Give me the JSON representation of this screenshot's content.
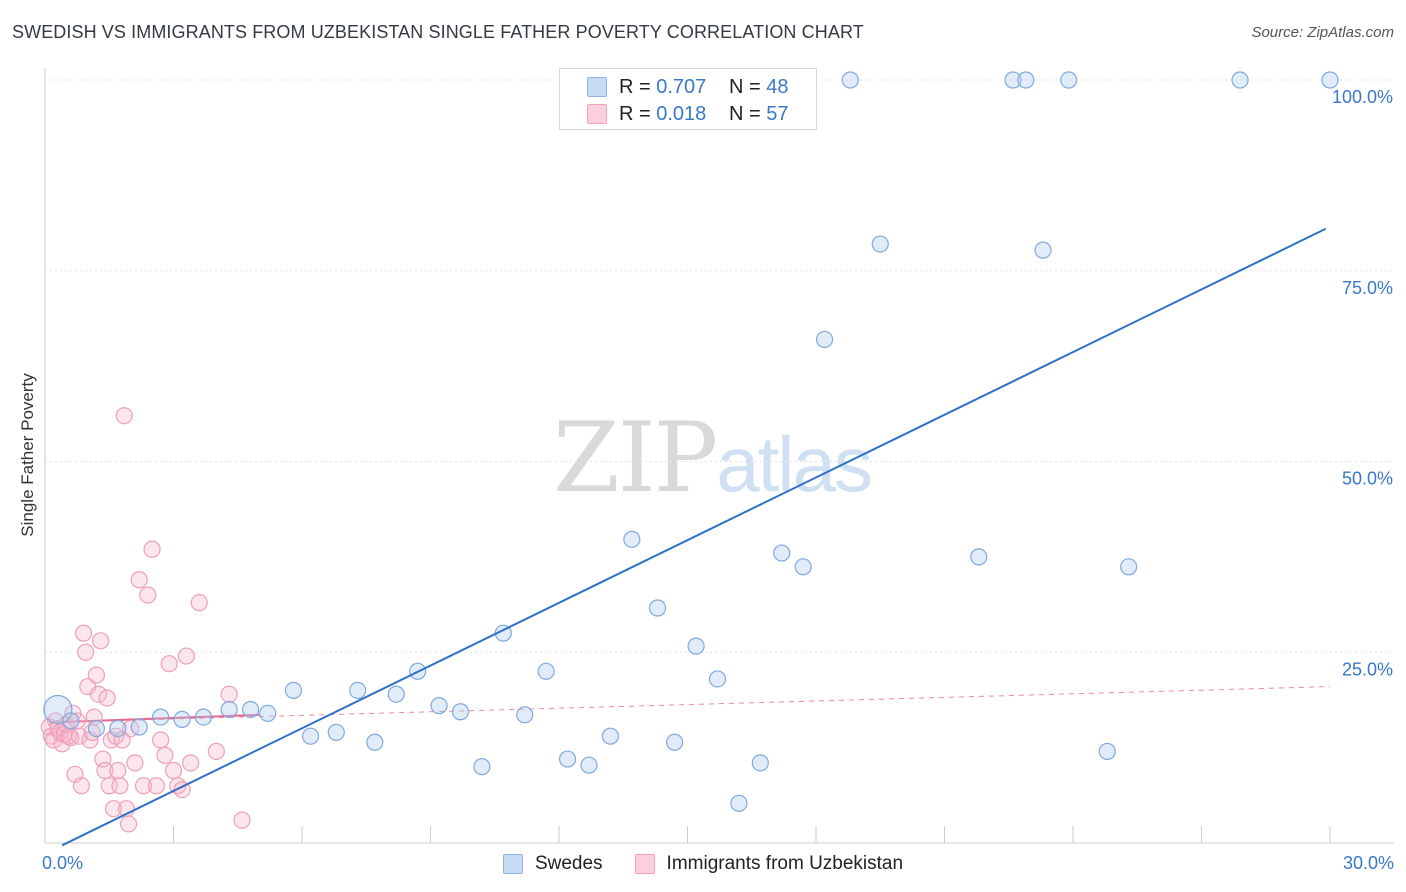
{
  "title": "SWEDISH VS IMMIGRANTS FROM UZBEKISTAN SINGLE FATHER POVERTY CORRELATION CHART",
  "source": "Source: ZipAtlas.com",
  "watermark": {
    "zip": "ZIP",
    "atlas": "atlas"
  },
  "legend_top": {
    "rows": [
      {
        "r_label": "R =",
        "r_value": "0.707",
        "n_label": "N =",
        "n_value": "48",
        "color": "#a9c8ef"
      },
      {
        "r_label": "R =",
        "r_value": "0.018",
        "n_label": "N =",
        "n_value": "57",
        "color": "#f6b8cb"
      }
    ]
  },
  "legend_bottom": {
    "items": [
      {
        "label": "Swedes",
        "color": "#a9c8ef"
      },
      {
        "label": "Immigrants from Uzbekistan",
        "color": "#f6b8cb"
      }
    ]
  },
  "chart_data": {
    "type": "scatter",
    "title": "SWEDISH VS IMMIGRANTS FROM UZBEKISTAN SINGLE FATHER POVERTY CORRELATION CHART",
    "xlabel": "",
    "ylabel": "Single Father Poverty",
    "xlim": [
      0,
      30
    ],
    "ylim": [
      0,
      100
    ],
    "x_tick_labels": [
      "0.0%",
      "30.0%"
    ],
    "y_tick_labels": [
      "25.0%",
      "50.0%",
      "75.0%",
      "100.0%"
    ],
    "y_tick_values": [
      25,
      50,
      75,
      100
    ],
    "grid": true,
    "colors": {
      "swedes": "#a9c8ef",
      "swedes_line": "#2e70c8",
      "uzbek": "#f6b8cb",
      "uzbek_line": "#e8688f",
      "axis_label": "#3a78c9"
    },
    "series": [
      {
        "name": "Swedes",
        "trend": {
          "x": [
            0.4,
            29.9
          ],
          "y": [
            -0.3,
            80.5
          ]
        },
        "points": [
          [
            0.3,
            17.5
          ],
          [
            0.6,
            16.0
          ],
          [
            1.2,
            15.0
          ],
          [
            1.7,
            15.0
          ],
          [
            2.2,
            15.2
          ],
          [
            2.7,
            16.5
          ],
          [
            3.2,
            16.2
          ],
          [
            3.7,
            16.5
          ],
          [
            4.3,
            17.5
          ],
          [
            4.8,
            17.5
          ],
          [
            5.2,
            17.0
          ],
          [
            5.8,
            20.0
          ],
          [
            6.2,
            14.0
          ],
          [
            6.8,
            14.5
          ],
          [
            7.3,
            20.0
          ],
          [
            7.7,
            13.2
          ],
          [
            8.2,
            19.5
          ],
          [
            8.7,
            22.5
          ],
          [
            9.2,
            18.0
          ],
          [
            9.7,
            17.2
          ],
          [
            10.2,
            10.0
          ],
          [
            10.7,
            27.5
          ],
          [
            11.2,
            16.8
          ],
          [
            11.7,
            22.5
          ],
          [
            12.2,
            11.0
          ],
          [
            12.7,
            10.2
          ],
          [
            13.2,
            14.0
          ],
          [
            13.7,
            39.8
          ],
          [
            14.3,
            30.8
          ],
          [
            14.7,
            13.2
          ],
          [
            15.2,
            25.8
          ],
          [
            15.7,
            21.5
          ],
          [
            16.2,
            5.2
          ],
          [
            16.7,
            10.5
          ],
          [
            17.2,
            38.0
          ],
          [
            17.7,
            36.2
          ],
          [
            18.2,
            66.0
          ],
          [
            18.8,
            100.0
          ],
          [
            19.5,
            78.5
          ],
          [
            21.8,
            37.5
          ],
          [
            22.6,
            100.0
          ],
          [
            22.9,
            100.0
          ],
          [
            23.3,
            77.7
          ],
          [
            23.9,
            100.0
          ],
          [
            24.8,
            12.0
          ],
          [
            25.3,
            36.2
          ],
          [
            27.9,
            100.0
          ],
          [
            30.0,
            100.0
          ]
        ]
      },
      {
        "name": "Immigrants from Uzbekistan",
        "trend_solid": {
          "x": [
            0.1,
            5.0
          ],
          "y": [
            15.8,
            16.8
          ]
        },
        "trend_dashed": {
          "x": [
            0.1,
            30.0
          ],
          "y": [
            15.8,
            20.5
          ]
        },
        "points": [
          [
            0.1,
            15.2
          ],
          [
            0.15,
            14.0
          ],
          [
            0.2,
            13.5
          ],
          [
            0.25,
            16.0
          ],
          [
            0.3,
            15.0
          ],
          [
            0.35,
            14.5
          ],
          [
            0.4,
            13.0
          ],
          [
            0.45,
            14.2
          ],
          [
            0.5,
            15.5
          ],
          [
            0.55,
            14.0
          ],
          [
            0.6,
            13.8
          ],
          [
            0.65,
            17.0
          ],
          [
            0.7,
            9.0
          ],
          [
            0.75,
            16.0
          ],
          [
            0.8,
            14.0
          ],
          [
            0.85,
            7.5
          ],
          [
            0.9,
            27.5
          ],
          [
            0.95,
            25.0
          ],
          [
            1.0,
            20.5
          ],
          [
            1.05,
            13.5
          ],
          [
            1.1,
            14.5
          ],
          [
            1.15,
            16.5
          ],
          [
            1.2,
            22.0
          ],
          [
            1.25,
            19.5
          ],
          [
            1.3,
            26.5
          ],
          [
            1.35,
            11.0
          ],
          [
            1.4,
            9.5
          ],
          [
            1.45,
            19.0
          ],
          [
            1.5,
            7.5
          ],
          [
            1.55,
            13.5
          ],
          [
            1.6,
            4.5
          ],
          [
            1.65,
            14.0
          ],
          [
            1.7,
            9.5
          ],
          [
            1.75,
            7.5
          ],
          [
            1.8,
            13.5
          ],
          [
            1.85,
            56.0
          ],
          [
            1.9,
            4.5
          ],
          [
            1.95,
            2.5
          ],
          [
            2.0,
            15.0
          ],
          [
            2.1,
            10.5
          ],
          [
            2.2,
            34.5
          ],
          [
            2.3,
            7.5
          ],
          [
            2.4,
            32.5
          ],
          [
            2.5,
            38.5
          ],
          [
            2.6,
            7.5
          ],
          [
            2.7,
            13.5
          ],
          [
            2.8,
            11.5
          ],
          [
            2.9,
            23.5
          ],
          [
            3.0,
            9.5
          ],
          [
            3.1,
            7.5
          ],
          [
            3.2,
            7.0
          ],
          [
            3.3,
            24.5
          ],
          [
            3.4,
            10.5
          ],
          [
            3.6,
            31.5
          ],
          [
            4.0,
            12.0
          ],
          [
            4.3,
            19.5
          ],
          [
            4.6,
            3.0
          ]
        ]
      }
    ]
  }
}
